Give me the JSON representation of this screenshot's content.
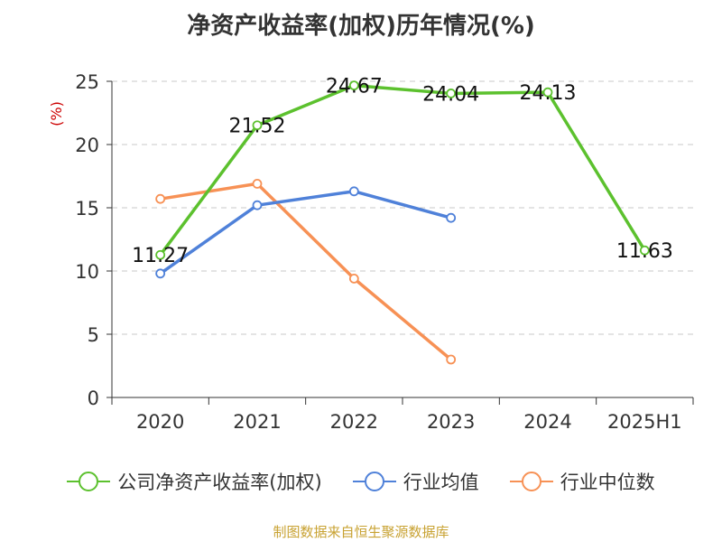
{
  "title": "净资产收益率(加权)历年情况(%)",
  "source": "制图数据来自恒生聚源数据库",
  "chart_data": {
    "type": "line",
    "title": "净资产收益率(加权)历年情况(%)",
    "ylabel": "(%)",
    "xlabel": "",
    "categories": [
      "2020",
      "2021",
      "2022",
      "2023",
      "2024",
      "2025H1"
    ],
    "ylim": [
      0,
      25
    ],
    "yticks": [
      0,
      5,
      10,
      15,
      20,
      25
    ],
    "grid": "horizontal dashed",
    "legend_position": "bottom",
    "series": [
      {
        "name": "公司净资产收益率(加权)",
        "color": "#5cc12e",
        "values": [
          11.27,
          21.52,
          24.67,
          24.04,
          24.13,
          11.63
        ],
        "labels": [
          "11.27",
          "21.52",
          "24.67",
          "24.04",
          "24.13",
          "11.63"
        ]
      },
      {
        "name": "行业均值",
        "color": "#4f81d9",
        "values": [
          9.8,
          15.2,
          16.3,
          14.2,
          null,
          null
        ]
      },
      {
        "name": "行业中位数",
        "color": "#f79155",
        "values": [
          15.7,
          16.9,
          9.4,
          3.0,
          null,
          null
        ]
      }
    ]
  }
}
